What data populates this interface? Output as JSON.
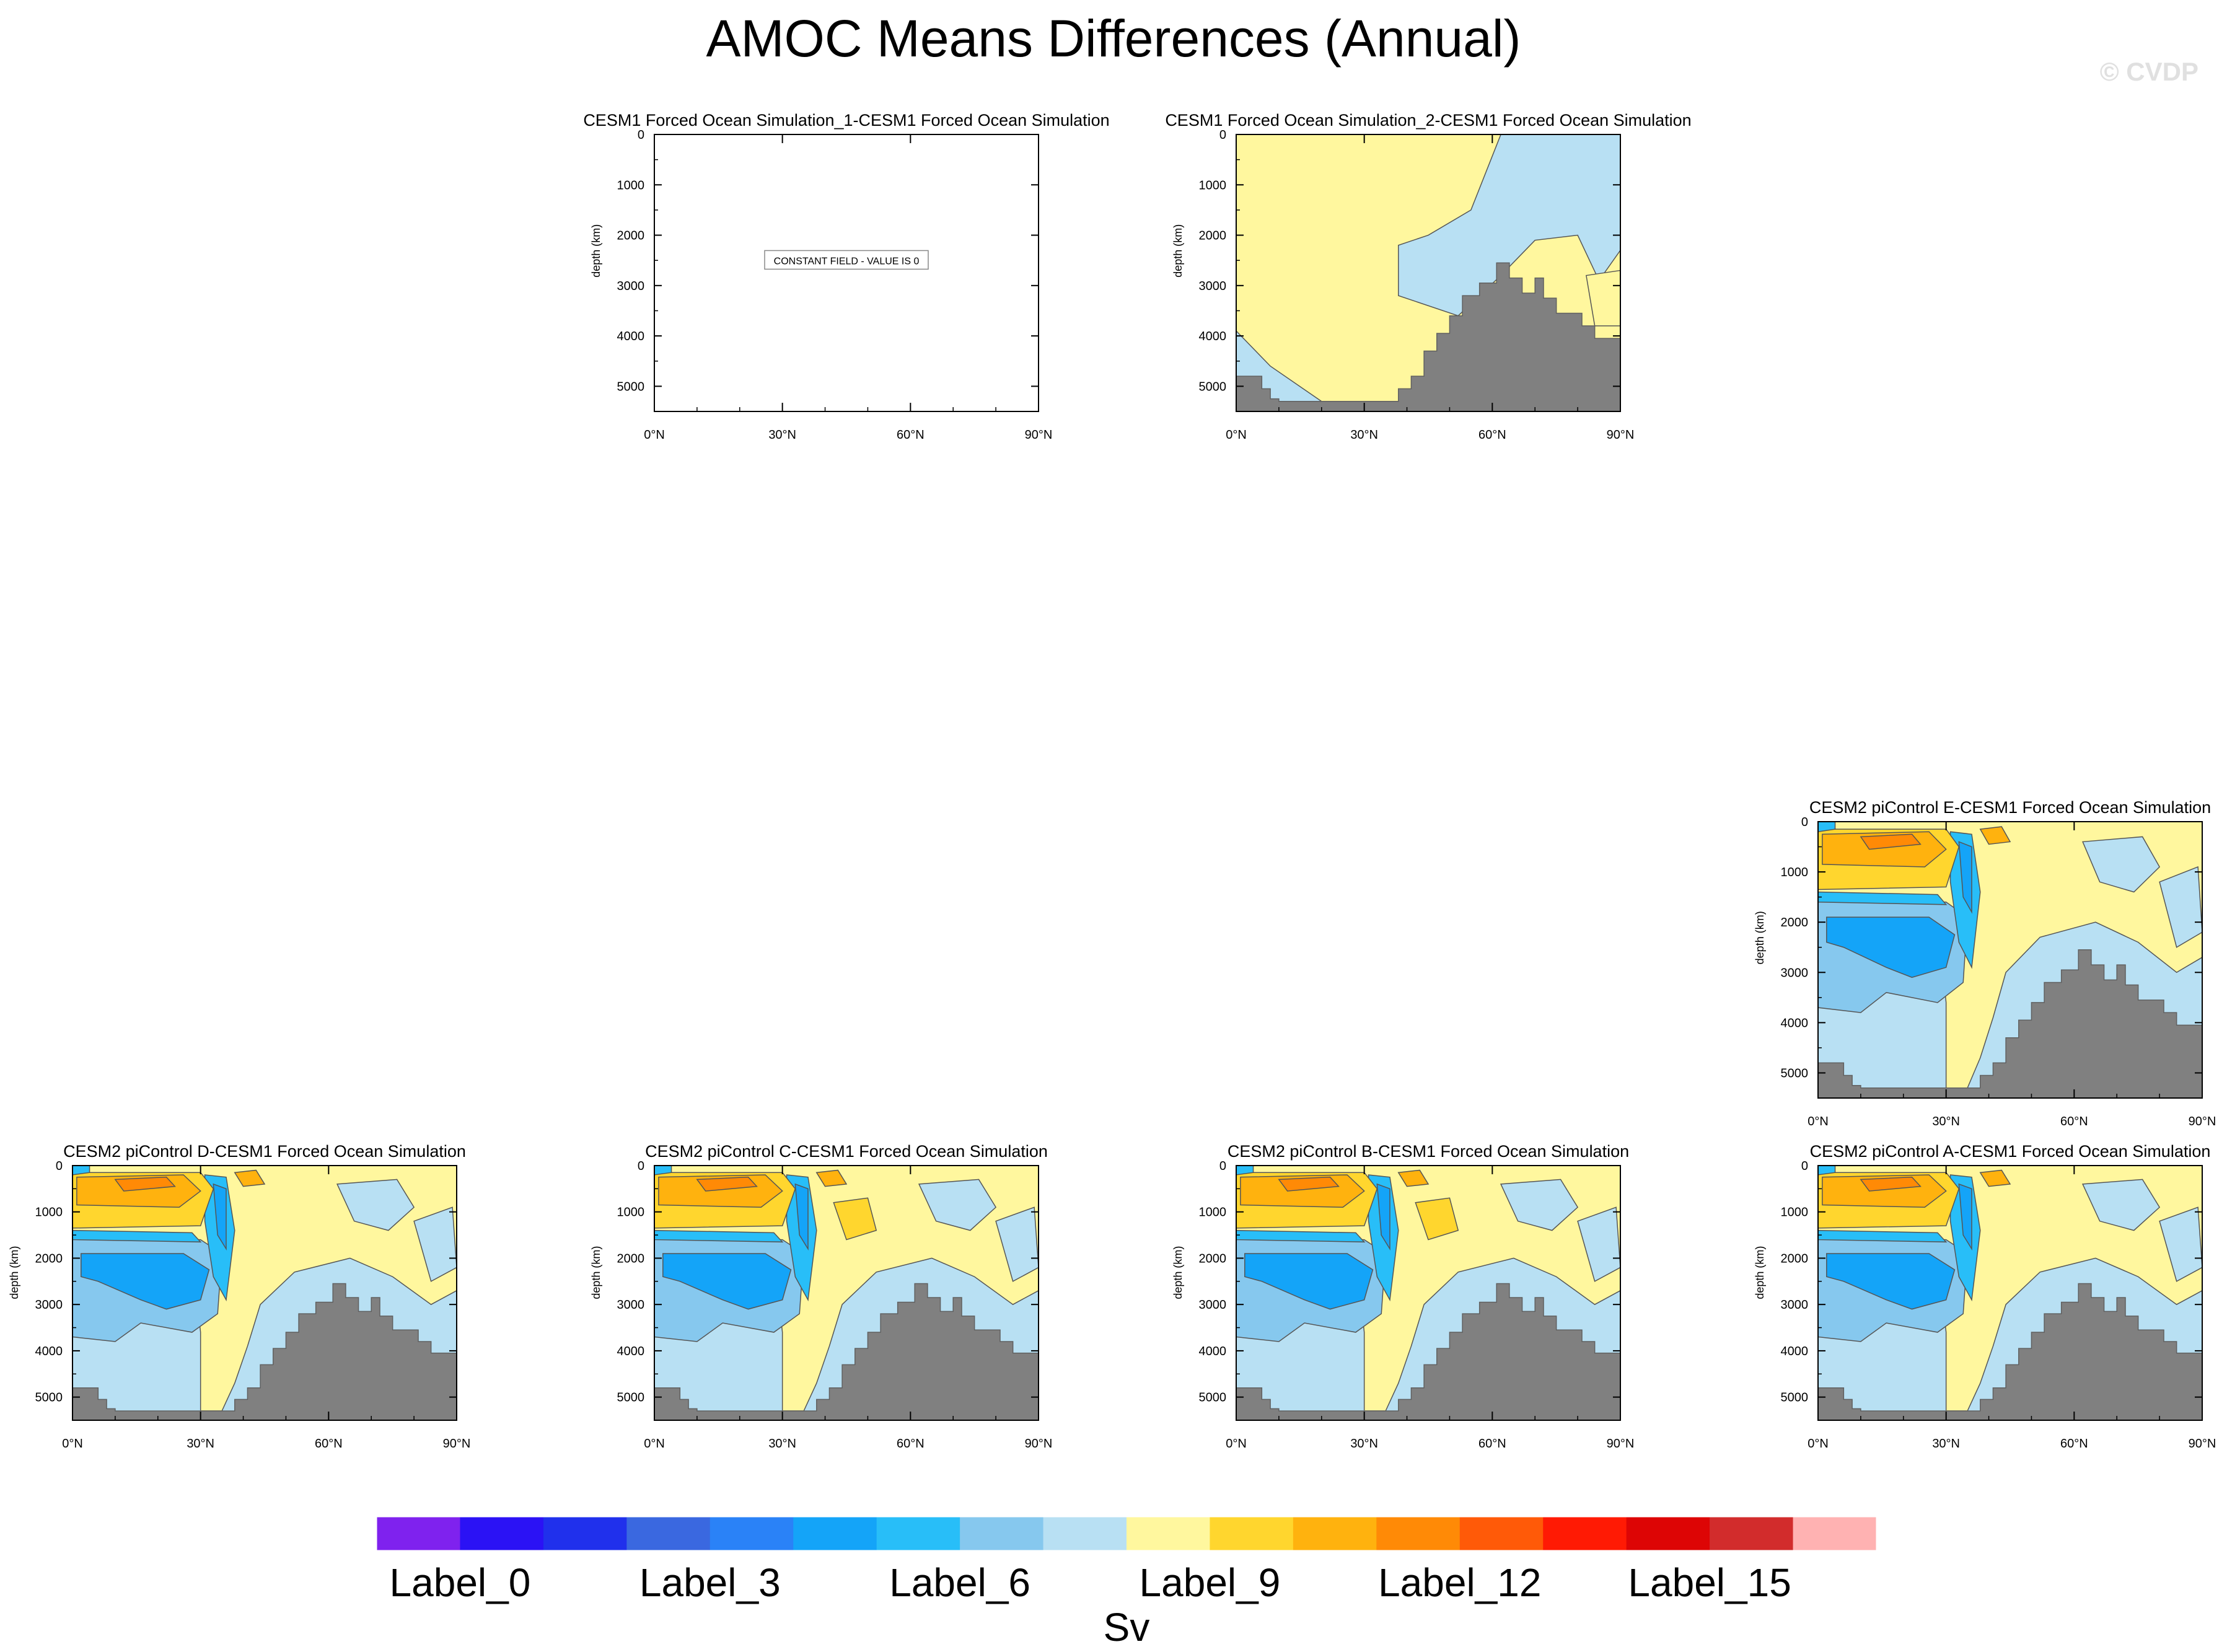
{
  "page": {
    "title": "AMOC Means Differences (Annual)",
    "watermark": "© CVDP"
  },
  "chart_data": [
    {
      "type": "heatmap",
      "title": "CESM1 Forced Ocean Simulation_1-CESM1 Forced Ocean Simulation",
      "ylabel": "depth (km)",
      "xlim": [
        0,
        90
      ],
      "ylim": [
        5500,
        0
      ],
      "x_ticks": [
        "0°N",
        "30°N",
        "60°N",
        "90°N"
      ],
      "y_ticks": [
        "0",
        "1000",
        "2000",
        "3000",
        "4000",
        "5000"
      ],
      "annotation": "CONSTANT FIELD - VALUE IS 0",
      "field": "constant"
    },
    {
      "type": "heatmap",
      "title": "CESM1 Forced Ocean Simulation_2-CESM1 Forced Ocean Simulation",
      "ylabel": "depth (km)",
      "xlim": [
        0,
        90
      ],
      "ylim": [
        5500,
        0
      ],
      "x_ticks": [
        "0°N",
        "30°N",
        "60°N",
        "90°N"
      ],
      "y_ticks": [
        "0",
        "1000",
        "2000",
        "3000",
        "4000",
        "5000"
      ],
      "field": "small-difference"
    },
    {
      "type": "heatmap",
      "title": "CESM2 piControl E-CESM1 Forced Ocean Simulation",
      "ylabel": "depth (km)",
      "xlim": [
        0,
        90
      ],
      "ylim": [
        5500,
        0
      ],
      "x_ticks": [
        "0°N",
        "30°N",
        "60°N",
        "90°N"
      ],
      "y_ticks": [
        "0",
        "1000",
        "2000",
        "3000",
        "4000",
        "5000"
      ],
      "field": "overturning-difference"
    },
    {
      "type": "heatmap",
      "title": "CESM2 piControl D-CESM1 Forced Ocean Simulation",
      "ylabel": "depth (km)",
      "xlim": [
        0,
        90
      ],
      "ylim": [
        5500,
        0
      ],
      "x_ticks": [
        "0°N",
        "30°N",
        "60°N",
        "90°N"
      ],
      "y_ticks": [
        "0",
        "1000",
        "2000",
        "3000",
        "4000",
        "5000"
      ],
      "field": "overturning-difference"
    },
    {
      "type": "heatmap",
      "title": "CESM2 piControl C-CESM1 Forced Ocean Simulation",
      "ylabel": "depth (km)",
      "xlim": [
        0,
        90
      ],
      "ylim": [
        5500,
        0
      ],
      "x_ticks": [
        "0°N",
        "30°N",
        "60°N",
        "90°N"
      ],
      "y_ticks": [
        "0",
        "1000",
        "2000",
        "3000",
        "4000",
        "5000"
      ],
      "field": "overturning-difference"
    },
    {
      "type": "heatmap",
      "title": "CESM2 piControl B-CESM1 Forced Ocean Simulation",
      "ylabel": "depth (km)",
      "xlim": [
        0,
        90
      ],
      "ylim": [
        5500,
        0
      ],
      "x_ticks": [
        "0°N",
        "30°N",
        "60°N",
        "90°N"
      ],
      "y_ticks": [
        "0",
        "1000",
        "2000",
        "3000",
        "4000",
        "5000"
      ],
      "field": "overturning-difference"
    },
    {
      "type": "heatmap",
      "title": "CESM2 piControl A-CESM1 Forced Ocean Simulation",
      "ylabel": "depth (km)",
      "xlim": [
        0,
        90
      ],
      "ylim": [
        5500,
        0
      ],
      "x_ticks": [
        "0°N",
        "30°N",
        "60°N",
        "90°N"
      ],
      "y_ticks": [
        "0",
        "1000",
        "2000",
        "3000",
        "4000",
        "5000"
      ],
      "field": "overturning-difference"
    }
  ],
  "colorbar": {
    "unit": "Sv",
    "colors": [
      "#7f22ee",
      "#2b12f5",
      "#2030ec",
      "#3a68e0",
      "#2a82f7",
      "#14a4f8",
      "#28bef8",
      "#86c8ee",
      "#b8e0f3",
      "#fff79e",
      "#ffd62e",
      "#ffb20e",
      "#ff8a06",
      "#ff5a08",
      "#ff1a04",
      "#dd0505",
      "#d22c2c",
      "#ffb2b2"
    ],
    "labels": [
      {
        "index": 0,
        "text": "Label_0"
      },
      {
        "index": 3,
        "text": "Label_3"
      },
      {
        "index": 6,
        "text": "Label_6"
      },
      {
        "index": 9,
        "text": "Label_9"
      },
      {
        "index": 12,
        "text": "Label_12"
      },
      {
        "index": 15,
        "text": "Label_15"
      }
    ]
  },
  "colors": {
    "land": "#808080",
    "positive_small": "#fff79e",
    "negative_small": "#b8e0f3"
  }
}
